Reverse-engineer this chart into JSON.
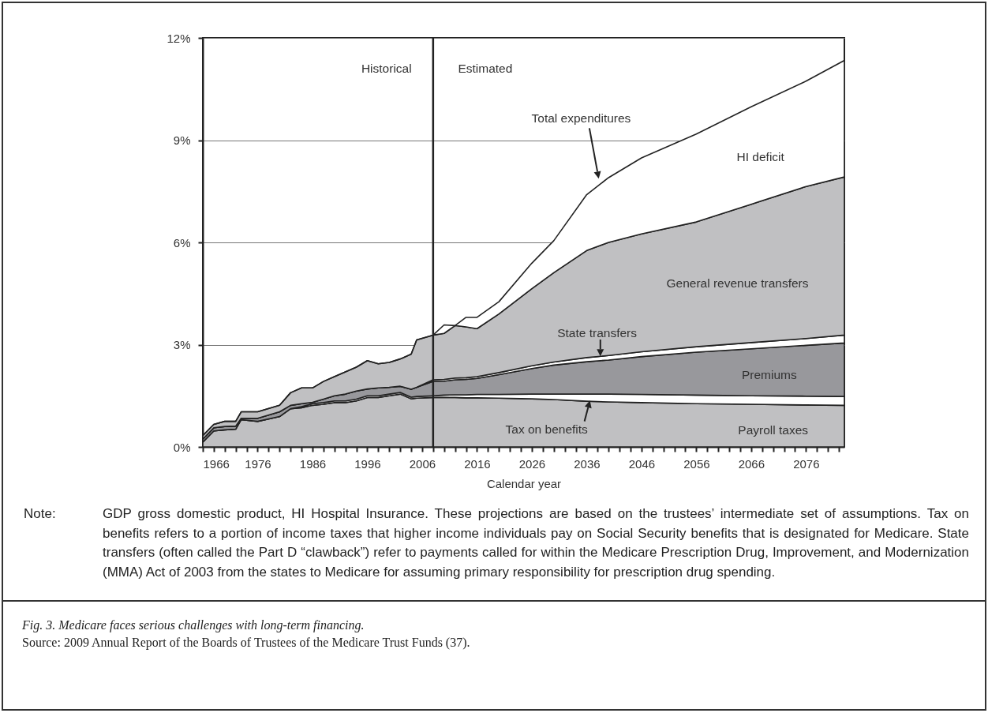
{
  "chart_data": {
    "type": "area",
    "title": "Fig. 3. Medicare faces serious challenges with long-term financing.",
    "xlabel": "Calendar year",
    "stacked": true,
    "grid": "y",
    "x": [
      1966,
      1968,
      1970,
      1972,
      1973,
      1976,
      1980,
      1982,
      1984,
      1986,
      1988,
      1990,
      1992,
      1994,
      1996,
      1998,
      2000,
      2002,
      2004,
      2005,
      2008,
      2010,
      2012,
      2014,
      2016,
      2020,
      2026,
      2030,
      2036,
      2040,
      2046,
      2056,
      2066,
      2076,
      2083
    ],
    "series": [
      {
        "name": "Payroll taxes",
        "color": "#c0c0c2",
        "values": [
          0.14,
          0.47,
          0.5,
          0.52,
          0.8,
          0.75,
          0.89,
          1.12,
          1.15,
          1.22,
          1.25,
          1.3,
          1.3,
          1.35,
          1.45,
          1.45,
          1.5,
          1.55,
          1.41,
          1.43,
          1.45,
          1.45,
          1.45,
          1.44,
          1.44,
          1.43,
          1.41,
          1.39,
          1.34,
          1.32,
          1.3,
          1.27,
          1.25,
          1.23,
          1.22
        ]
      },
      {
        "name": "Tax on benefits",
        "color": "#ffffff",
        "values": [
          0,
          0,
          0,
          0,
          0,
          0,
          0,
          0,
          0.03,
          0.05,
          0.05,
          0.05,
          0.05,
          0.05,
          0.05,
          0.05,
          0.05,
          0.05,
          0.05,
          0.05,
          0.05,
          0.07,
          0.08,
          0.09,
          0.1,
          0.11,
          0.14,
          0.16,
          0.21,
          0.23,
          0.24,
          0.25,
          0.25,
          0.26,
          0.26
        ]
      },
      {
        "name": "Premiums",
        "color": "#98989c",
        "values": [
          0.09,
          0.09,
          0.1,
          0.09,
          0.04,
          0.09,
          0.14,
          0.1,
          0.09,
          0.04,
          0.1,
          0.15,
          0.2,
          0.24,
          0.2,
          0.23,
          0.2,
          0.18,
          0.23,
          0.27,
          0.42,
          0.41,
          0.44,
          0.45,
          0.47,
          0.58,
          0.75,
          0.85,
          0.95,
          1.0,
          1.11,
          1.26,
          1.38,
          1.49,
          1.57
        ]
      },
      {
        "name": "State transfers",
        "color": "#ffffff",
        "values": [
          0,
          0,
          0,
          0,
          0,
          0,
          0,
          0,
          0,
          0,
          0,
          0,
          0,
          0,
          0,
          0,
          0,
          0,
          0,
          0,
          0.05,
          0.05,
          0.05,
          0.05,
          0.05,
          0.06,
          0.08,
          0.09,
          0.12,
          0.13,
          0.14,
          0.16,
          0.18,
          0.2,
          0.23
        ]
      },
      {
        "name": "General revenue transfers",
        "color": "#c0c0c2",
        "values": [
          0.1,
          0.1,
          0.15,
          0.14,
          0.19,
          0.19,
          0.19,
          0.37,
          0.46,
          0.42,
          0.52,
          0.56,
          0.65,
          0.7,
          0.83,
          0.71,
          0.73,
          0.8,
          1.03,
          1.39,
          1.31,
          1.35,
          1.54,
          1.49,
          1.41,
          1.72,
          2.26,
          2.62,
          3.14,
          3.32,
          3.46,
          3.66,
          4.06,
          4.46,
          4.64
        ]
      },
      {
        "name": "HI deficit",
        "color": "#ffffff",
        "values": [
          0,
          0,
          0,
          0,
          0,
          0,
          0,
          0,
          0,
          0,
          0,
          0,
          0,
          0,
          0,
          0,
          0,
          0,
          0,
          0,
          0,
          0.25,
          0,
          0.28,
          0.33,
          0.36,
          0.75,
          0.94,
          1.64,
          1.9,
          2.23,
          2.58,
          2.86,
          3.09,
          3.42
        ]
      }
    ],
    "xlim": [
      1966,
      2083
    ],
    "xticks": [
      {
        "value": 1966,
        "label": "1966"
      },
      {
        "value": 1968,
        "label": null
      },
      {
        "value": 1970,
        "label": null
      },
      {
        "value": 1972,
        "label": null
      },
      {
        "value": 1974,
        "label": null
      },
      {
        "value": 1976,
        "label": "1976"
      },
      {
        "value": 1978,
        "label": null
      },
      {
        "value": 1980,
        "label": null
      },
      {
        "value": 1982,
        "label": null
      },
      {
        "value": 1984,
        "label": null
      },
      {
        "value": 1986,
        "label": "1986"
      },
      {
        "value": 1988,
        "label": null
      },
      {
        "value": 1990,
        "label": null
      },
      {
        "value": 1992,
        "label": null
      },
      {
        "value": 1994,
        "label": null
      },
      {
        "value": 1996,
        "label": "1996"
      },
      {
        "value": 1998,
        "label": null
      },
      {
        "value": 2000,
        "label": null
      },
      {
        "value": 2002,
        "label": null
      },
      {
        "value": 2004,
        "label": null
      },
      {
        "value": 2006,
        "label": "2006"
      },
      {
        "value": 2008,
        "label": null
      },
      {
        "value": 2010,
        "label": null
      },
      {
        "value": 2012,
        "label": null
      },
      {
        "value": 2014,
        "label": null
      },
      {
        "value": 2016,
        "label": "2016"
      },
      {
        "value": 2018,
        "label": null
      },
      {
        "value": 2020,
        "label": null
      },
      {
        "value": 2022,
        "label": null
      },
      {
        "value": 2024,
        "label": null
      },
      {
        "value": 2026,
        "label": "2026"
      },
      {
        "value": 2028,
        "label": null
      },
      {
        "value": 2030,
        "label": null
      },
      {
        "value": 2032,
        "label": null
      },
      {
        "value": 2034,
        "label": null
      },
      {
        "value": 2036,
        "label": "2036"
      },
      {
        "value": 2038,
        "label": null
      },
      {
        "value": 2040,
        "label": null
      },
      {
        "value": 2042,
        "label": null
      },
      {
        "value": 2044,
        "label": null
      },
      {
        "value": 2046,
        "label": "2046"
      },
      {
        "value": 2048,
        "label": null
      },
      {
        "value": 2050,
        "label": null
      },
      {
        "value": 2052,
        "label": null
      },
      {
        "value": 2054,
        "label": null
      },
      {
        "value": 2056,
        "label": "2056"
      },
      {
        "value": 2058,
        "label": null
      },
      {
        "value": 2060,
        "label": null
      },
      {
        "value": 2062,
        "label": null
      },
      {
        "value": 2064,
        "label": null
      },
      {
        "value": 2066,
        "label": "2066"
      },
      {
        "value": 2068,
        "label": null
      },
      {
        "value": 2070,
        "label": null
      },
      {
        "value": 2072,
        "label": null
      },
      {
        "value": 2074,
        "label": null
      },
      {
        "value": 2076,
        "label": "2076"
      },
      {
        "value": 2078,
        "label": null
      },
      {
        "value": 2080,
        "label": null
      },
      {
        "value": 2082,
        "label": null
      }
    ],
    "ylim": [
      0,
      12
    ],
    "yticks": [
      {
        "value": 0,
        "label": "0%"
      },
      {
        "value": 3,
        "label": "3%"
      },
      {
        "value": 6,
        "label": "6%"
      },
      {
        "value": 9,
        "label": "9%"
      },
      {
        "value": 12,
        "label": "12%"
      }
    ],
    "ref_lines": [
      {
        "axis": "x",
        "value": 2008,
        "color": "#222222"
      }
    ],
    "annotations": [
      "Historical",
      "Estimated",
      "Total expenditures",
      "Note: GDP gross domestic product, HI Hospital Insurance. These projections are based on the trustees’ intermediate set of assumptions. Tax on benefits refers to a portion of income taxes that higher income individuals pay on Social Security benefits that is designated for Medicare. State transfers (often called the Part D “clawback”) refer to payments called for within the Medicare Prescription Drug, Improvement, and Modernization (MMA) Act of 2003 from the states to Medicare for assuming primary responsibility for prescription drug spending.",
      "Source: 2009 Annual Report of the Boards of Trustees of the Medicare Trust Funds (37)."
    ]
  }
}
